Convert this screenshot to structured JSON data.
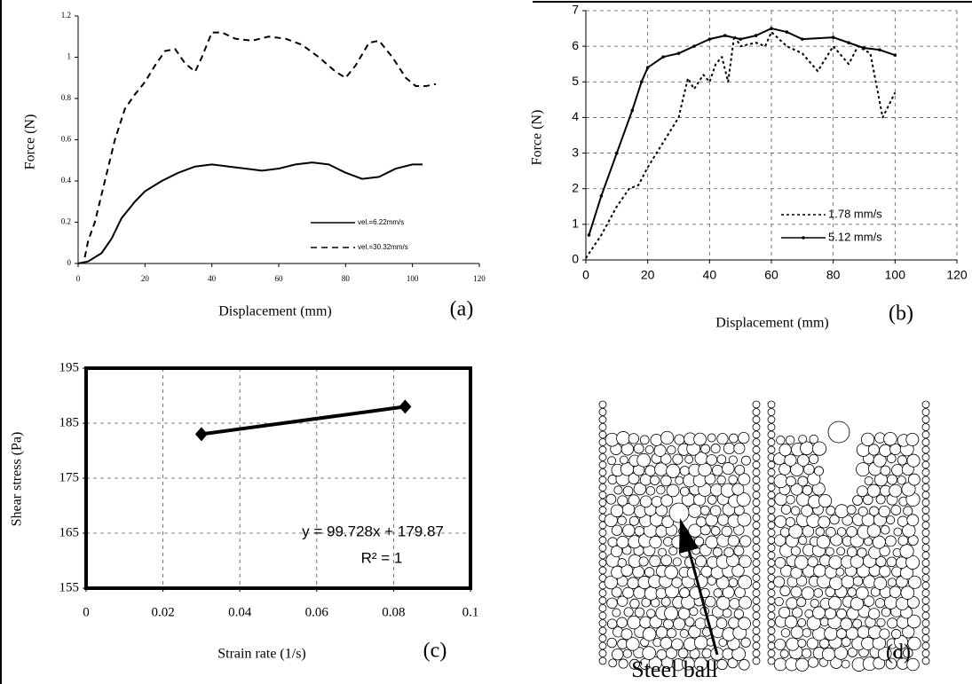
{
  "chart_data": [
    {
      "type": "line",
      "xlabel": "Displacement (mm)",
      "ylabel": "Force (N)",
      "panel_label": "(a)",
      "xlim": [
        0,
        120
      ],
      "ylim": [
        0,
        1.2
      ],
      "xticks": [
        0,
        20,
        40,
        60,
        80,
        100,
        120
      ],
      "yticks": [
        0,
        0.2,
        0.4,
        0.6,
        0.8,
        1,
        1.2
      ],
      "grid": false,
      "series": [
        {
          "name": "vel.=6.22mm/s",
          "color": "#000000",
          "dash": "solid",
          "x": [
            0,
            3,
            7,
            10,
            13,
            17,
            20,
            25,
            30,
            35,
            40,
            45,
            50,
            55,
            60,
            65,
            70,
            75,
            80,
            85,
            90,
            95,
            100,
            103
          ],
          "values": [
            0,
            0.01,
            0.05,
            0.12,
            0.22,
            0.3,
            0.35,
            0.4,
            0.44,
            0.47,
            0.48,
            0.47,
            0.46,
            0.45,
            0.46,
            0.48,
            0.49,
            0.48,
            0.44,
            0.41,
            0.42,
            0.46,
            0.48,
            0.48
          ]
        },
        {
          "name": "vel.=30.32mm/s",
          "color": "#000000",
          "dash": "dashed",
          "x": [
            2,
            3,
            5,
            8,
            11,
            14,
            17,
            20,
            23,
            26,
            29,
            32,
            35,
            37,
            40,
            43,
            47,
            52,
            57,
            62,
            67,
            72,
            77,
            80,
            83,
            87,
            90,
            94,
            98,
            101,
            104,
            107
          ],
          "values": [
            0.03,
            0.11,
            0.2,
            0.4,
            0.6,
            0.75,
            0.82,
            0.88,
            0.96,
            1.03,
            1.04,
            0.97,
            0.93,
            1.0,
            1.12,
            1.12,
            1.09,
            1.08,
            1.1,
            1.09,
            1.06,
            1.0,
            0.93,
            0.9,
            0.96,
            1.07,
            1.08,
            1.0,
            0.9,
            0.86,
            0.86,
            0.87
          ]
        }
      ]
    },
    {
      "type": "line",
      "xlabel": "Displacement (mm)",
      "ylabel": "Force (N)",
      "panel_label": "(b)",
      "xlim": [
        0,
        120
      ],
      "ylim": [
        0,
        7
      ],
      "xticks": [
        0,
        20,
        40,
        60,
        80,
        100,
        120
      ],
      "yticks": [
        0,
        1,
        2,
        3,
        4,
        5,
        6,
        7
      ],
      "grid": true,
      "series": [
        {
          "name": "1.78 mm/s",
          "color": "#000000",
          "dash": "dotted",
          "x": [
            0,
            5,
            10,
            14,
            17,
            20,
            25,
            30,
            33,
            35,
            38,
            40,
            42,
            44,
            46,
            48,
            50,
            55,
            58,
            60,
            65,
            70,
            75,
            80,
            85,
            88,
            92,
            96,
            100
          ],
          "values": [
            0.05,
            0.7,
            1.5,
            2.0,
            2.1,
            2.6,
            3.3,
            4.0,
            5.1,
            4.8,
            5.2,
            5.0,
            5.5,
            5.7,
            5.0,
            6.3,
            6.0,
            6.1,
            6.0,
            6.4,
            6.0,
            5.8,
            5.3,
            6.0,
            5.5,
            6.0,
            5.8,
            4.0,
            4.7
          ]
        },
        {
          "name": "5.12 mm/s",
          "color": "#000000",
          "dash": "solid",
          "marker": "dot",
          "x": [
            1,
            5,
            10,
            15,
            18,
            20,
            25,
            30,
            35,
            40,
            45,
            50,
            55,
            60,
            65,
            70,
            80,
            85,
            90,
            95,
            100
          ],
          "values": [
            0.7,
            1.8,
            3.0,
            4.2,
            5.0,
            5.4,
            5.7,
            5.8,
            6.0,
            6.2,
            6.3,
            6.2,
            6.3,
            6.5,
            6.4,
            6.2,
            6.25,
            6.1,
            5.95,
            5.9,
            5.75
          ]
        }
      ]
    },
    {
      "type": "line",
      "xlabel": "Strain rate (1/s)",
      "ylabel": "Shear stress (Pa)",
      "panel_label": "(c)",
      "xlim": [
        0,
        0.1
      ],
      "ylim": [
        155,
        195
      ],
      "xticks": [
        0,
        0.02,
        0.04,
        0.06,
        0.08,
        0.1
      ],
      "yticks": [
        155,
        165,
        175,
        185,
        195
      ],
      "grid": true,
      "annotations": [
        "y = 99.728x + 179.87",
        "R² = 1"
      ],
      "series": [
        {
          "color": "#000000",
          "dash": "solid",
          "marker": "diamond",
          "x": [
            0.03,
            0.083
          ],
          "values": [
            183,
            188
          ]
        }
      ]
    }
  ],
  "diagram": {
    "label": "Steel ball",
    "panel_label": "(d)"
  }
}
